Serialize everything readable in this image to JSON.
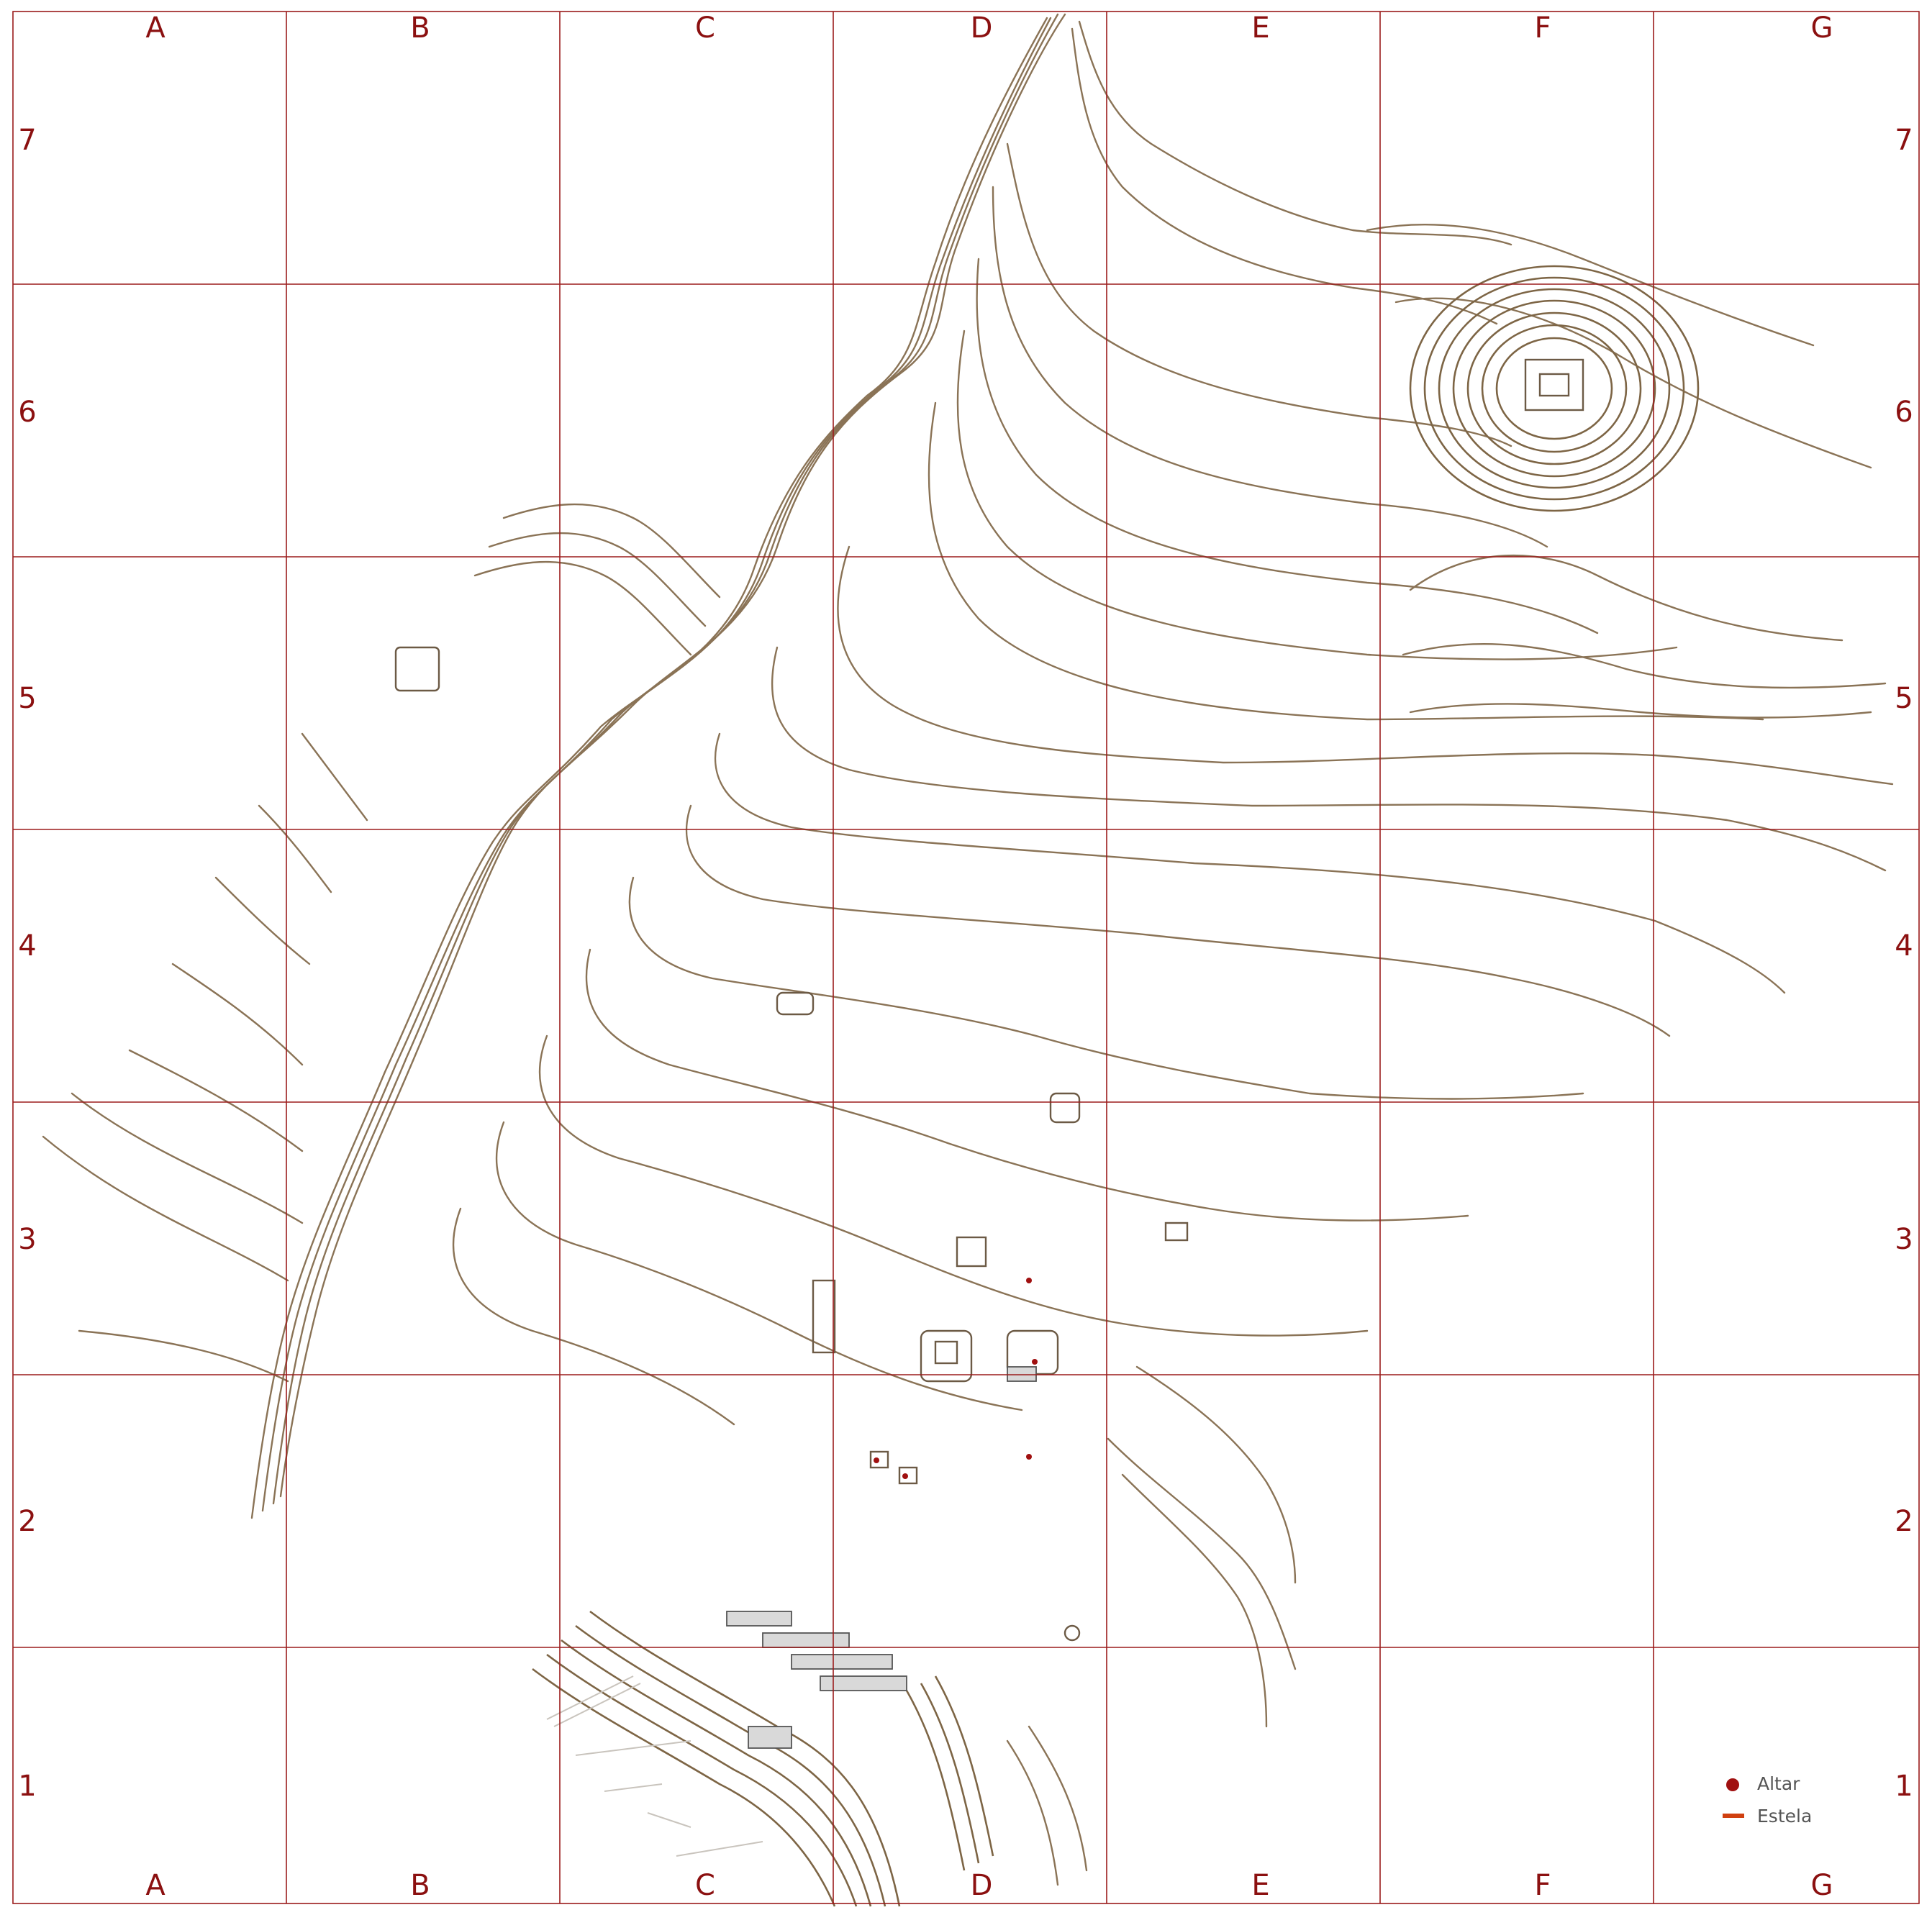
{
  "grid": {
    "columns": [
      "A",
      "B",
      "C",
      "D",
      "E",
      "F",
      "G"
    ],
    "rows": [
      "7",
      "6",
      "5",
      "4",
      "3",
      "2",
      "1"
    ]
  },
  "legend": {
    "items": [
      {
        "label": "Altar",
        "symbol": "dot",
        "color": "#a01010"
      },
      {
        "label": "Estela",
        "symbol": "dash",
        "color": "#d04010"
      }
    ]
  },
  "colors": {
    "grid": "#9b1c1c",
    "contour": "#8a7356",
    "labels": "#8b1010"
  }
}
